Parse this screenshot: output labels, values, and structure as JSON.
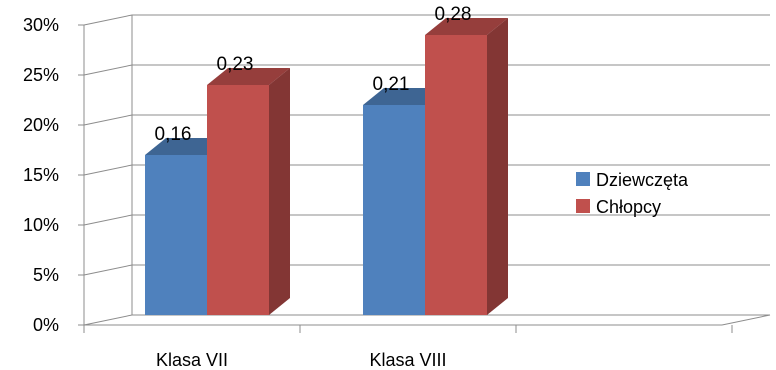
{
  "chart_data": {
    "type": "bar",
    "three_d": true,
    "categories": [
      "Klasa VII",
      "Klasa VIII"
    ],
    "series": [
      {
        "name": "Dziewczęta",
        "color": "#4F81BD",
        "values": [
          0.16,
          0.21
        ],
        "labels": [
          "0,16",
          "0,21"
        ]
      },
      {
        "name": "Chłopcy",
        "color": "#C0504D",
        "values": [
          0.23,
          0.28
        ],
        "labels": [
          "0,23",
          "0,28"
        ]
      }
    ],
    "y_ticks": [
      "0%",
      "5%",
      "10%",
      "15%",
      "20%",
      "25%",
      "30%"
    ],
    "ylim": [
      0,
      0.3
    ],
    "grid": true,
    "legend_position": "right"
  }
}
